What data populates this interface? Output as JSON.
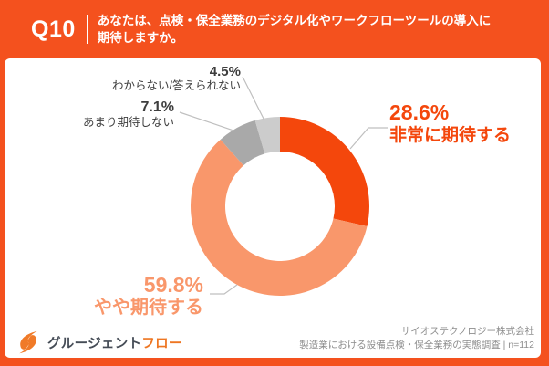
{
  "header": {
    "question_number": "Q10",
    "question_line1": "あなたは、点検・保全業務のデジタル化やワークフローツールの導入に",
    "question_line2": "期待しますか。"
  },
  "chart_data": {
    "type": "pie",
    "subtype": "donut",
    "start_angle": "top",
    "direction": "clockwise",
    "categories": [
      "非常に期待する",
      "やや期待する",
      "あまり期待しない",
      "わからない/答えられない"
    ],
    "values": [
      28.6,
      59.8,
      7.1,
      4.5
    ],
    "unit": "%",
    "colors": [
      "#F4470C",
      "#F9976B",
      "#A9A9A9",
      "#CCCCCC"
    ],
    "hole_color": "#FFFFFF",
    "callouts": [
      {
        "pct": "28.6%",
        "label": "非常に期待する"
      },
      {
        "pct": "59.8%",
        "label": "やや期待する"
      },
      {
        "pct": "7.1%",
        "label": "あまり期待しない"
      },
      {
        "pct": "4.5%",
        "label": "わからない/答えられない"
      }
    ]
  },
  "footer": {
    "logo_text_main": "グルージェント",
    "logo_text_accent": "フロー",
    "source_line1": "サイオステクノロジー株式会社",
    "source_line2": "製造業における設備点検・保全業務の実態調査 | n=112"
  },
  "colors": {
    "frame_orange": "#F4511E",
    "leader_line": "#BFBFBF",
    "panel": "#FFFFFF"
  }
}
